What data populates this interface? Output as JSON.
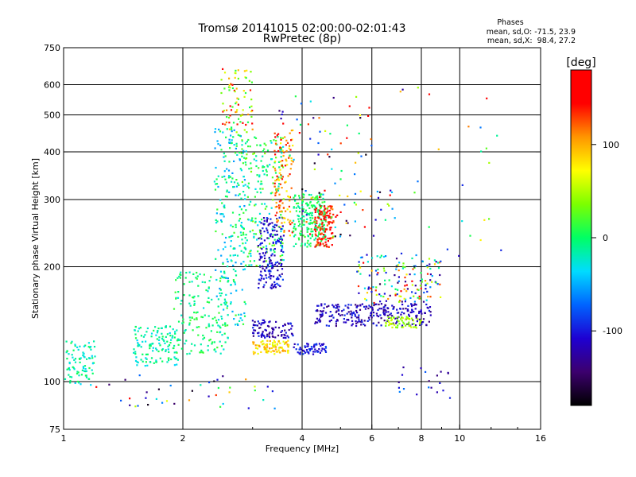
{
  "chart_data": {
    "type": "scatter",
    "title": "Tromsø 20141015 02:00:00-02:01:43",
    "subtitle": "RwPretec (8p)",
    "xlabel": "Frequency [MHz]",
    "ylabel": "Stationary phase Virtual Height [km]",
    "xscale": "log2",
    "yscale": "log",
    "xlim": [
      1,
      16
    ],
    "ylim": [
      75,
      750
    ],
    "x_ticks": [
      "1",
      "2",
      "4",
      "6",
      "8",
      "10",
      "16"
    ],
    "y_ticks": [
      "750",
      "600",
      "500",
      "400",
      "300",
      "200",
      "100",
      "75"
    ],
    "grid": true,
    "legend": {
      "title": "Phases",
      "lines": [
        "mean, sd,O: -71.5, 23.9",
        "mean, sd,X:  98.4, 27.2"
      ]
    },
    "colorbar": {
      "label": "[deg]",
      "ticks": [
        "100",
        "0",
        "-100"
      ],
      "range": [
        -180,
        180
      ],
      "colors": [
        "#000000",
        "#3c006e",
        "#1e00d2",
        "#0064ff",
        "#00dcff",
        "#00ff64",
        "#7cff00",
        "#ffff00",
        "#ff9600",
        "#ff0000",
        "#ff0000"
      ]
    },
    "clusters": [
      {
        "x": [
          1.0,
          1.2
        ],
        "y": [
          98,
          128
        ],
        "n": 90,
        "phase": [
          -40,
          10
        ]
      },
      {
        "x": [
          1.5,
          1.95
        ],
        "y": [
          110,
          140
        ],
        "n": 130,
        "phase": [
          -40,
          10
        ]
      },
      {
        "x": [
          1.9,
          2.6
        ],
        "y": [
          118,
          195
        ],
        "n": 160,
        "phase": [
          -30,
          20
        ]
      },
      {
        "x": [
          2.4,
          2.9
        ],
        "y": [
          140,
          460
        ],
        "n": 220,
        "phase": [
          -60,
          20
        ]
      },
      {
        "x": [
          2.5,
          3.0
        ],
        "y": [
          450,
          660
        ],
        "n": 80,
        "phase": [
          0,
          160
        ]
      },
      {
        "x": [
          2.8,
          3.6
        ],
        "y": [
          200,
          440
        ],
        "n": 220,
        "phase": [
          -40,
          40
        ]
      },
      {
        "x": [
          3.1,
          3.6
        ],
        "y": [
          175,
          270
        ],
        "n": 160,
        "phase": [
          -130,
          -80
        ]
      },
      {
        "x": [
          3.4,
          3.8
        ],
        "y": [
          240,
          460
        ],
        "n": 120,
        "phase": [
          70,
          160
        ]
      },
      {
        "x": [
          3.8,
          4.6
        ],
        "y": [
          225,
          310
        ],
        "n": 200,
        "phase": [
          -20,
          20
        ]
      },
      {
        "x": [
          4.3,
          4.8
        ],
        "y": [
          225,
          290
        ],
        "n": 120,
        "phase": [
          110,
          170
        ]
      },
      {
        "x": [
          3.0,
          3.7
        ],
        "y": [
          118,
          128
        ],
        "n": 90,
        "phase": [
          60,
          110
        ]
      },
      {
        "x": [
          3.0,
          3.8
        ],
        "y": [
          130,
          145
        ],
        "n": 90,
        "phase": [
          -140,
          -90
        ]
      },
      {
        "x": [
          3.8,
          4.6
        ],
        "y": [
          118,
          126
        ],
        "n": 60,
        "phase": [
          -120,
          -80
        ]
      },
      {
        "x": [
          4.3,
          8.5
        ],
        "y": [
          140,
          160
        ],
        "n": 260,
        "phase": [
          -140,
          -90
        ]
      },
      {
        "x": [
          5.5,
          9.0
        ],
        "y": [
          160,
          215
        ],
        "n": 160,
        "phase": [
          -160,
          160
        ]
      },
      {
        "x": [
          6.5,
          8.0
        ],
        "y": [
          138,
          148
        ],
        "n": 60,
        "phase": [
          30,
          70
        ]
      },
      {
        "x": [
          4.0,
          7.0
        ],
        "y": [
          240,
          320
        ],
        "n": 60,
        "phase": [
          -180,
          180
        ]
      },
      {
        "x": [
          3.5,
          6.0
        ],
        "y": [
          330,
          560
        ],
        "n": 50,
        "phase": [
          -180,
          180
        ]
      },
      {
        "x": [
          7.0,
          13.0
        ],
        "y": [
          200,
          620
        ],
        "n": 25,
        "phase": [
          -180,
          180
        ]
      },
      {
        "x": [
          1.2,
          3.5
        ],
        "y": [
          85,
          105
        ],
        "n": 40,
        "phase": [
          -180,
          180
        ]
      },
      {
        "x": [
          7.0,
          9.5
        ],
        "y": [
          90,
          110
        ],
        "n": 20,
        "phase": [
          -160,
          -60
        ]
      }
    ]
  }
}
